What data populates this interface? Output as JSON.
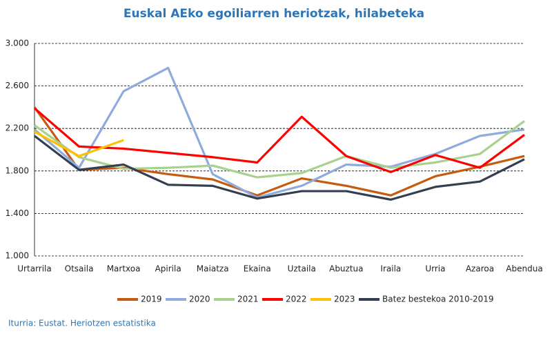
{
  "chart_data": {
    "type": "line",
    "title": "Euskal AEko egoiliarren heriotzak, hilabeteka",
    "source": "Iturria: Eustat. Heriotzen estatistika",
    "categories": [
      "Urtarrila",
      "Otsaila",
      "Martxoa",
      "Apirila",
      "Maiatza",
      "Ekaina",
      "Uztaila",
      "Abuztua",
      "Iraila",
      "Urria",
      "Azaroa",
      "Abendua"
    ],
    "ylim": [
      1000,
      3000
    ],
    "yticks": [
      {
        "value": 1000,
        "label": "1.000"
      },
      {
        "value": 1400,
        "label": "1.400"
      },
      {
        "value": 1800,
        "label": "1.800"
      },
      {
        "value": 2200,
        "label": "2.200"
      },
      {
        "value": 2600,
        "label": "2.600"
      },
      {
        "value": 3000,
        "label": "3.000"
      }
    ],
    "grid": true,
    "legend": "bottom",
    "series": [
      {
        "name": "2019",
        "color": "#c55a11",
        "values": [
          2400,
          1810,
          1830,
          1770,
          1720,
          1570,
          1730,
          1660,
          1570,
          1750,
          1840,
          1940
        ]
      },
      {
        "name": "2020",
        "color": "#8faadc",
        "values": [
          2190,
          1830,
          2550,
          2770,
          1770,
          1550,
          1660,
          1860,
          1840,
          1960,
          2130,
          2190
        ]
      },
      {
        "name": "2021",
        "color": "#a9d18e",
        "values": [
          2230,
          1930,
          1820,
          1830,
          1850,
          1740,
          1780,
          1940,
          1830,
          1880,
          1960,
          2270
        ]
      },
      {
        "name": "2022",
        "color": "#ff0000",
        "values": [
          2390,
          2030,
          2010,
          1970,
          1930,
          1880,
          2310,
          1940,
          1790,
          1950,
          1830,
          2140
        ]
      },
      {
        "name": "2023",
        "color": "#ffc000",
        "values": [
          2170,
          1940,
          2090,
          null,
          null,
          null,
          null,
          null,
          null,
          null,
          null,
          null
        ]
      },
      {
        "name": "Batez bestekoa 2010-2019",
        "color": "#333f50",
        "values": [
          2130,
          1810,
          1860,
          1670,
          1660,
          1540,
          1610,
          1610,
          1530,
          1650,
          1700,
          1910
        ]
      }
    ]
  }
}
